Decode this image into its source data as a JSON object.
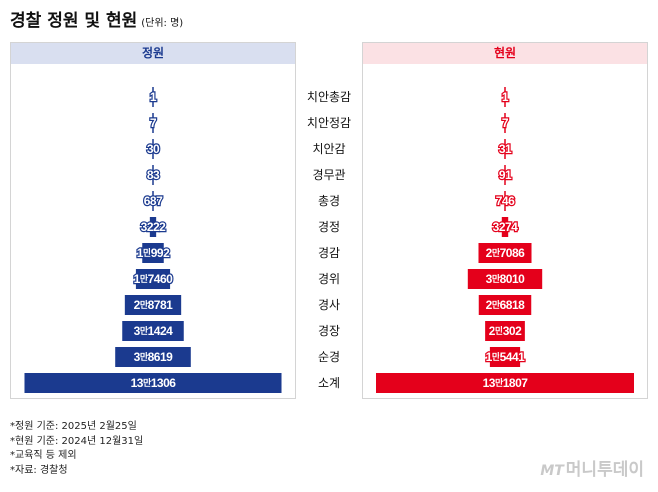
{
  "title": "경찰 정원 및 현원",
  "unit_note": "(단위: 명)",
  "left_header": "정원",
  "right_header": "현원",
  "colors": {
    "left": "#1b3a8f",
    "right": "#e4001b"
  },
  "chart_data": {
    "type": "bar",
    "categories": [
      "치안총감",
      "치안정감",
      "치안감",
      "경무관",
      "총경",
      "경정",
      "경감",
      "경위",
      "경사",
      "경장",
      "순경",
      "소계"
    ],
    "series": [
      {
        "name": "정원",
        "values": [
          1,
          7,
          30,
          83,
          687,
          3222,
          10992,
          17460,
          28781,
          31424,
          38619,
          131306
        ],
        "labels": [
          "1",
          "7",
          "30",
          "83",
          "687",
          "3222",
          "1만992",
          "1만7460",
          "2만8781",
          "3만1424",
          "3만8619",
          "13만1306"
        ]
      },
      {
        "name": "현원",
        "values": [
          1,
          7,
          31,
          91,
          746,
          3274,
          27086,
          38010,
          26818,
          20302,
          15441,
          131807
        ],
        "labels": [
          "1",
          "7",
          "31",
          "91",
          "746",
          "3274",
          "2만7086",
          "3만8010",
          "2만6818",
          "2만302",
          "1만5441",
          "13만1807"
        ]
      }
    ]
  },
  "footnotes": [
    "*정원 기준: 2025년 2월25일",
    "*현원 기준: 2024년 12월31일",
    "*교육직 등 제외",
    "*자료: 경찰청"
  ],
  "logo": {
    "mark": "MT",
    "text": "머니투데이"
  }
}
